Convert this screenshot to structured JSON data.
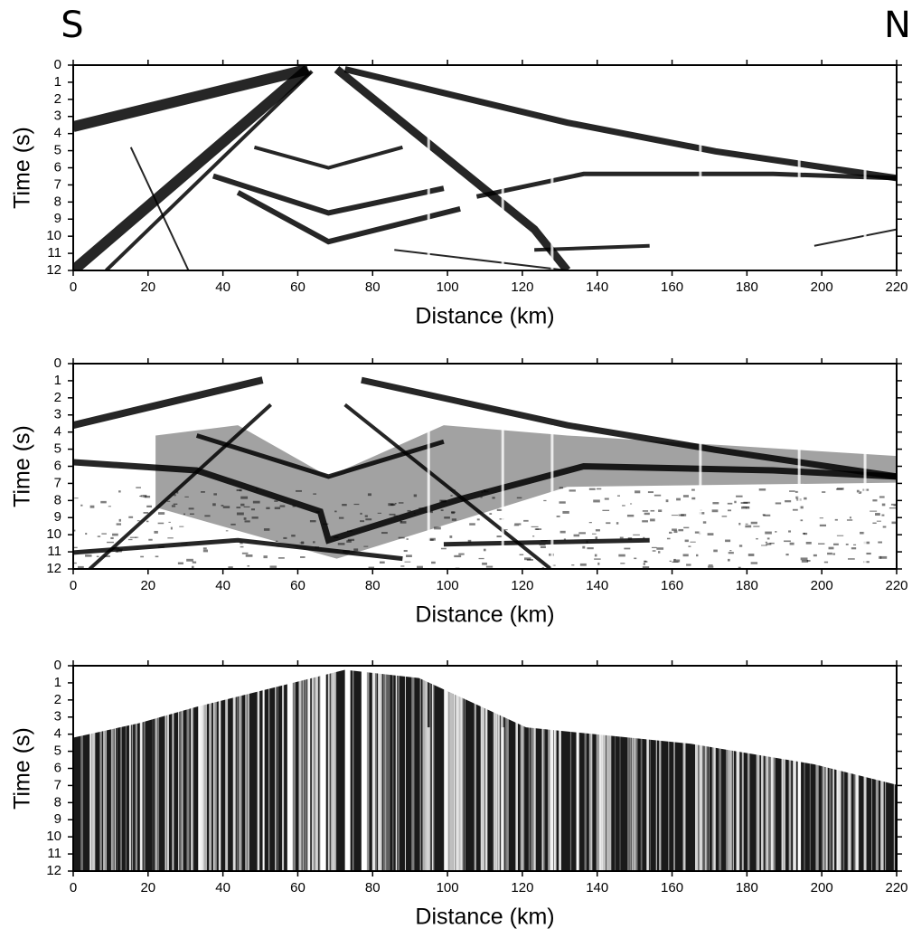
{
  "chart_data": [
    {
      "type": "image",
      "annotations": [
        "S",
        "N"
      ],
      "xlabel": "Distance (km)",
      "ylabel": "Time (s)",
      "xlim": [
        0,
        220
      ],
      "xticks": [
        0,
        20,
        40,
        60,
        80,
        100,
        120,
        140,
        160,
        180,
        200,
        220
      ],
      "ylim": [
        0,
        12
      ],
      "y_reversed": true,
      "yticks": [
        0,
        1,
        2,
        3,
        4,
        5,
        6,
        7,
        8,
        9,
        10,
        11,
        12
      ]
    },
    {
      "type": "image",
      "xlabel": "Distance (km)",
      "ylabel": "Time (s)",
      "xlim": [
        0,
        220
      ],
      "xticks": [
        0,
        20,
        40,
        60,
        80,
        100,
        120,
        140,
        160,
        180,
        200,
        220
      ],
      "ylim": [
        0,
        12
      ],
      "y_reversed": true,
      "yticks": [
        0,
        1,
        2,
        3,
        4,
        5,
        6,
        7,
        8,
        9,
        10,
        11,
        12
      ]
    },
    {
      "type": "image",
      "xlabel": "Distance (km)",
      "ylabel": "Time (s)",
      "xlim": [
        0,
        220
      ],
      "xticks": [
        0,
        20,
        40,
        60,
        80,
        100,
        120,
        140,
        160,
        180,
        200,
        220
      ],
      "ylim": [
        0,
        12
      ],
      "y_reversed": true,
      "yticks": [
        0,
        1,
        2,
        3,
        4,
        5,
        6,
        7,
        8,
        9,
        10,
        11,
        12
      ]
    }
  ]
}
